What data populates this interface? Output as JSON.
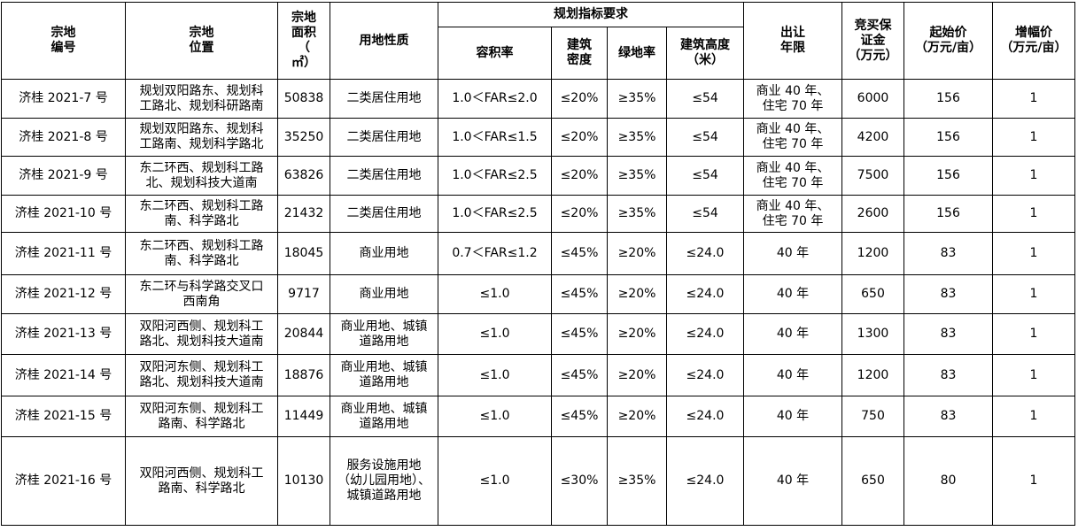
{
  "header": {
    "parcel_no": [
      "宗地",
      "编号"
    ],
    "location": [
      "宗地",
      "位置"
    ],
    "area": [
      "宗地",
      "面积",
      "（",
      "㎡）"
    ],
    "land_use": [
      "用地性质"
    ],
    "planning_group": "规划指标要求",
    "far": [
      "容积率"
    ],
    "density": [
      "建筑",
      "密度"
    ],
    "green": [
      "绿地率"
    ],
    "height": [
      "建筑高度",
      "（米）"
    ],
    "term": [
      "出让",
      "年限"
    ],
    "deposit": [
      "竞买保",
      "证金",
      "（万元）"
    ],
    "start_price": [
      "起始价",
      "（万元/亩）"
    ],
    "increment": [
      "增幅价",
      "（万元/亩）"
    ]
  },
  "rows": [
    {
      "code": "济桂 2021-7 号",
      "location": "规划双阳路东、规划科工路北、规划科研路南",
      "area": "50838",
      "land_use": "二类居住用地",
      "far": "1.0＜FAR≤2.0",
      "density": "≤20%",
      "green": "≥35%",
      "height": "≤54",
      "term": "商业 40 年、住宅 70 年",
      "deposit": "6000",
      "start_price": "156",
      "increment": "1"
    },
    {
      "code": "济桂 2021-8 号",
      "location": "规划双阳路东、规划科工路南、规划科学路北",
      "area": "35250",
      "land_use": "二类居住用地",
      "far": "1.0＜FAR≤1.5",
      "density": "≤20%",
      "green": "≥35%",
      "height": "≤54",
      "term": "商业 40 年、住宅 70 年",
      "deposit": "4200",
      "start_price": "156",
      "increment": "1"
    },
    {
      "code": "济桂 2021-9 号",
      "location": "东二环西、规划科工路北、规划科技大道南",
      "area": "63826",
      "land_use": "二类居住用地",
      "far": "1.0＜FAR≤2.5",
      "density": "≤20%",
      "green": "≥35%",
      "height": "≤54",
      "term": "商业 40 年、住宅 70 年",
      "deposit": "7500",
      "start_price": "156",
      "increment": "1"
    },
    {
      "code": "济桂 2021-10 号",
      "location": "东二环西、规划科工路南、科学路北",
      "area": "21432",
      "land_use": "二类居住用地",
      "far": "1.0＜FAR≤2.5",
      "density": "≤20%",
      "green": "≥35%",
      "height": "≤54",
      "term": "商业 40 年、住宅 70 年",
      "deposit": "2600",
      "start_price": "156",
      "increment": "1"
    },
    {
      "code": "济桂 2021-11 号",
      "location": "东二环西、规划科工路南、科学路北",
      "area": "18045",
      "land_use": "商业用地",
      "far": "0.7＜FAR≤1.2",
      "density": "≤45%",
      "green": "≥20%",
      "height": "≤24.0",
      "term": "40 年",
      "deposit": "1200",
      "start_price": "83",
      "increment": "1"
    },
    {
      "code": "济桂 2021-12 号",
      "location": "东二环与科学路交叉口西南角",
      "area": "9717",
      "land_use": "商业用地",
      "far": "≤1.0",
      "density": "≤45%",
      "green": "≥20%",
      "height": "≤24.0",
      "term": "40 年",
      "deposit": "650",
      "start_price": "83",
      "increment": "1"
    },
    {
      "code": "济桂 2021-13 号",
      "location": "双阳河西侧、规划科工路北、规划科技大道南",
      "area": "20844",
      "land_use": "商业用地、城镇道路用地",
      "far": "≤1.0",
      "density": "≤45%",
      "green": "≥20%",
      "height": "≤24.0",
      "term": "40 年",
      "deposit": "1300",
      "start_price": "83",
      "increment": "1"
    },
    {
      "code": "济桂 2021-14 号",
      "location": "双阳河东侧、规划科工路北、规划科技大道南",
      "area": "18876",
      "land_use": "商业用地、城镇道路用地",
      "far": "≤1.0",
      "density": "≤45%",
      "green": "≥20%",
      "height": "≤24.0",
      "term": "40 年",
      "deposit": "1200",
      "start_price": "83",
      "increment": "1"
    },
    {
      "code": "济桂 2021-15 号",
      "location": "双阳河东侧、规划科工路南、科学路北",
      "area": "11449",
      "land_use": "商业用地、城镇道路用地",
      "far": "≤1.0",
      "density": "≤45%",
      "green": "≥20%",
      "height": "≤24.0",
      "term": "40 年",
      "deposit": "750",
      "start_price": "83",
      "increment": "1"
    },
    {
      "code": "济桂 2021-16 号",
      "location": "双阳河西侧、规划科工路南、科学路北",
      "area": "10130",
      "land_use": "服务设施用地（幼儿园用地）、城镇道路用地",
      "far": "≤1.0",
      "density": "≤30%",
      "green": "≥35%",
      "height": "≤24.0",
      "term": "40 年",
      "deposit": "650",
      "start_price": "80",
      "increment": "1"
    }
  ]
}
